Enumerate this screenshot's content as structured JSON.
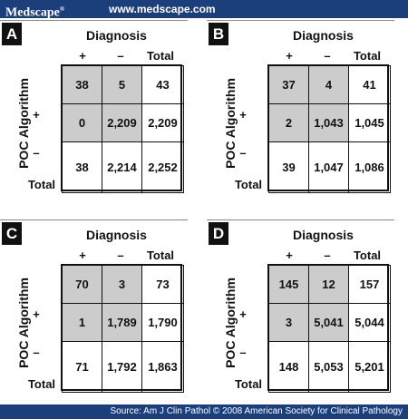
{
  "header": {
    "logo": "Medscape",
    "logo_mark": "®",
    "site": "www.medscape.com"
  },
  "footer": {
    "source": "Source: Am J Clin Pathol © 2008 American Society for Clinical Pathology"
  },
  "panels": [
    {
      "label": "A",
      "title": "Diagnosis",
      "row_axis": "POC Algorithm",
      "cols": [
        "+",
        "–",
        "Total"
      ],
      "rows": [
        "+",
        "–",
        "Total"
      ],
      "cells": [
        [
          "38",
          "5",
          "43"
        ],
        [
          "0",
          "2,209",
          "2,209"
        ],
        [
          "38",
          "2,214",
          "2,252"
        ]
      ]
    },
    {
      "label": "B",
      "title": "Diagnosis",
      "row_axis": "POC Algorithm",
      "cols": [
        "+",
        "–",
        "Total"
      ],
      "rows": [
        "+",
        "–",
        "Total"
      ],
      "cells": [
        [
          "37",
          "4",
          "41"
        ],
        [
          "2",
          "1,043",
          "1,045"
        ],
        [
          "39",
          "1,047",
          "1,086"
        ]
      ]
    },
    {
      "label": "C",
      "title": "Diagnosis",
      "row_axis": "POC Algorithm",
      "cols": [
        "+",
        "–",
        "Total"
      ],
      "rows": [
        "+",
        "–",
        "Total"
      ],
      "cells": [
        [
          "70",
          "3",
          "73"
        ],
        [
          "1",
          "1,789",
          "1,790"
        ],
        [
          "71",
          "1,792",
          "1,863"
        ]
      ]
    },
    {
      "label": "D",
      "title": "Diagnosis",
      "row_axis": "POC Algorithm",
      "cols": [
        "+",
        "–",
        "Total"
      ],
      "rows": [
        "+",
        "–",
        "Total"
      ],
      "cells": [
        [
          "145",
          "12",
          "157"
        ],
        [
          "3",
          "5,041",
          "5,044"
        ],
        [
          "148",
          "5,053",
          "5,201"
        ]
      ]
    }
  ]
}
